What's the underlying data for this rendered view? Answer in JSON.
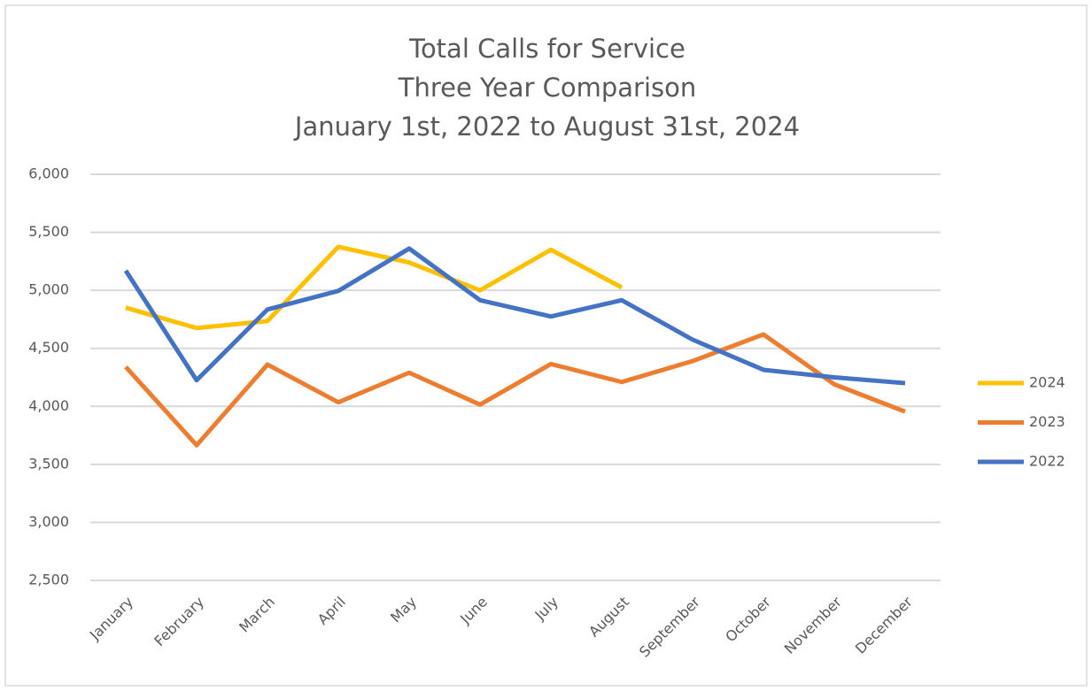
{
  "chart_data": {
    "type": "line",
    "title": [
      "Total Calls for Service",
      "Three Year Comparison",
      "January 1st, 2022 to August 31st, 2024"
    ],
    "categories": [
      "January",
      "February",
      "March",
      "April",
      "May",
      "June",
      "July",
      "August",
      "September",
      "October",
      "November",
      "December"
    ],
    "series": [
      {
        "name": "2024",
        "color": "#ffc000",
        "values": [
          4850,
          4675,
          4735,
          5375,
          5240,
          5000,
          5350,
          5025,
          null,
          null,
          null,
          null
        ]
      },
      {
        "name": "2023",
        "color": "#ed7d31",
        "values": [
          4340,
          3665,
          4360,
          4035,
          4290,
          4015,
          4365,
          4210,
          4390,
          4620,
          4190,
          3955
        ]
      },
      {
        "name": "2022",
        "color": "#4472c4",
        "values": [
          5170,
          4225,
          4835,
          4995,
          5360,
          4915,
          4775,
          4915,
          4575,
          4315,
          4250,
          4200
        ]
      }
    ],
    "ylim": [
      2500,
      6000
    ],
    "yticks": [
      {
        "value": 2500,
        "label": "2,500"
      },
      {
        "value": 3000,
        "label": "3,000"
      },
      {
        "value": 3500,
        "label": "3,500"
      },
      {
        "value": 4000,
        "label": "4,000"
      },
      {
        "value": 4500,
        "label": "4,500"
      },
      {
        "value": 5000,
        "label": "5,000"
      },
      {
        "value": 5500,
        "label": "5,500"
      },
      {
        "value": 6000,
        "label": "6,000"
      }
    ],
    "grid": true,
    "legend": "right"
  }
}
